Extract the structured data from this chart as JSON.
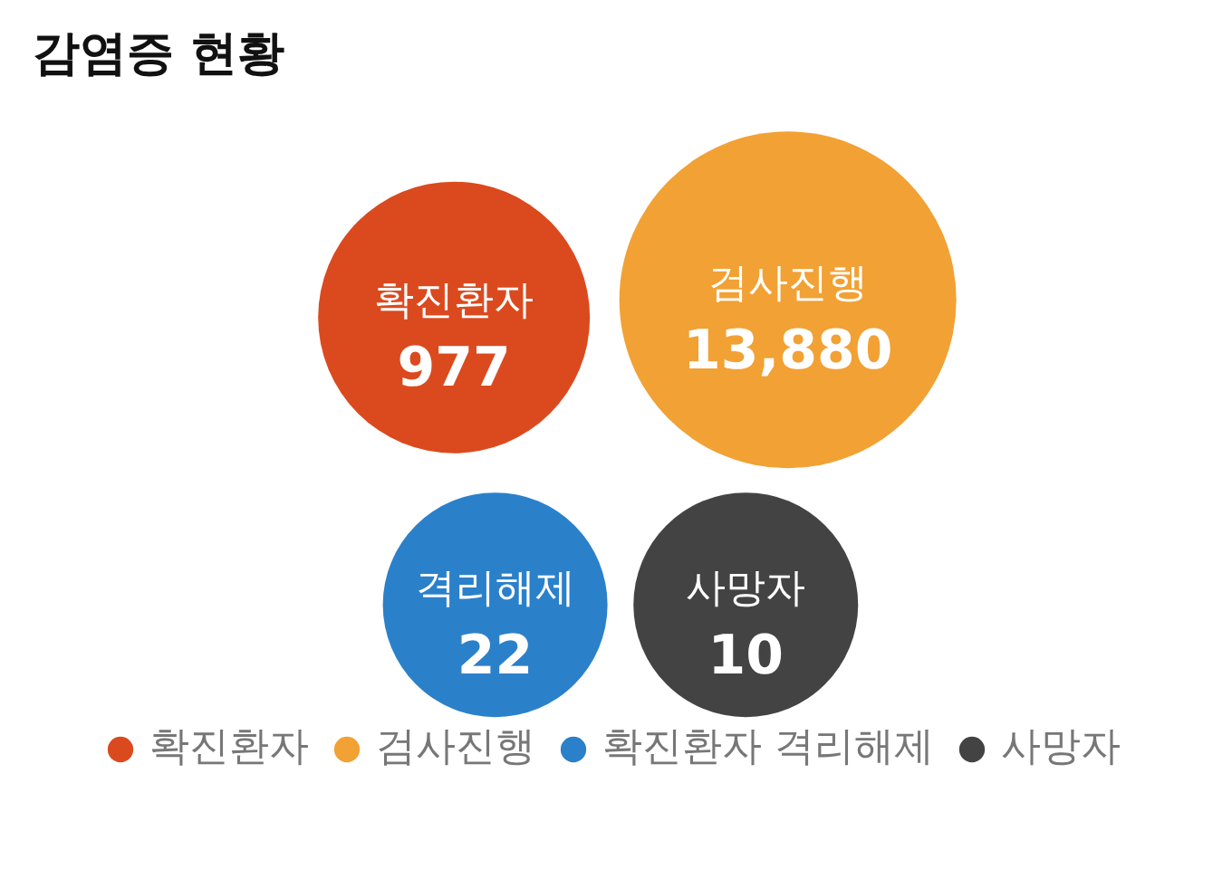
{
  "chart_data": {
    "type": "other",
    "title": "감염증 현황",
    "categories": [
      "확진환자",
      "검사진행",
      "격리해제",
      "사망자"
    ],
    "data_labels": true,
    "series": [
      {
        "name": "확진환자",
        "color": "#db4a1e",
        "values": [
          977,
          null,
          null,
          null
        ]
      },
      {
        "name": "검사진행",
        "color": "#f2a134",
        "values": [
          null,
          13880,
          null,
          null
        ],
        "value_labels": [
          null,
          "13,880",
          null,
          null
        ]
      },
      {
        "name": "확진환자 격리해제",
        "color": "#2b80ca",
        "values": [
          null,
          null,
          22,
          null
        ]
      },
      {
        "name": "사망자",
        "color": "#434343",
        "values": [
          null,
          null,
          null,
          10
        ]
      }
    ],
    "legend": "bottom"
  }
}
